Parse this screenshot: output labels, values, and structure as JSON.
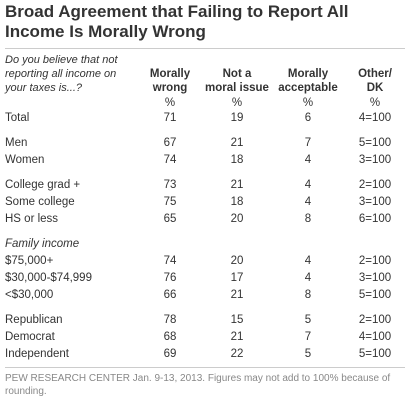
{
  "title": "Broad Agreement that Failing to Report All\nIncome Is Morally Wrong",
  "question": "Do you believe that not\nreporting all income on\nyour taxes is...?",
  "columns": [
    "Morally\nwrong",
    "Not a\nmoral issue",
    "Morally\nacceptable",
    "Other/\nDK"
  ],
  "units": [
    "%",
    "%",
    "%",
    "%"
  ],
  "groups": [
    {
      "rows": [
        {
          "label": "Total",
          "values": [
            71,
            19,
            6,
            "4=100"
          ]
        }
      ]
    },
    {
      "rows": [
        {
          "label": "Men",
          "values": [
            67,
            21,
            7,
            "5=100"
          ]
        },
        {
          "label": "Women",
          "values": [
            74,
            18,
            4,
            "3=100"
          ]
        }
      ]
    },
    {
      "rows": [
        {
          "label": "College grad +",
          "values": [
            73,
            21,
            4,
            "2=100"
          ]
        },
        {
          "label": "Some college",
          "values": [
            75,
            18,
            4,
            "3=100"
          ]
        },
        {
          "label": "HS or less",
          "values": [
            65,
            20,
            8,
            "6=100"
          ]
        }
      ]
    },
    {
      "heading": "Family income",
      "rows": [
        {
          "label": "$75,000+",
          "values": [
            74,
            20,
            4,
            "2=100"
          ]
        },
        {
          "label": "$30,000-$74,999",
          "values": [
            76,
            17,
            4,
            "3=100"
          ]
        },
        {
          "label": "<$30,000",
          "values": [
            66,
            21,
            8,
            "5=100"
          ]
        }
      ]
    },
    {
      "rows": [
        {
          "label": "Republican",
          "values": [
            78,
            15,
            5,
            "2=100"
          ]
        },
        {
          "label": "Democrat",
          "values": [
            68,
            21,
            7,
            "4=100"
          ]
        },
        {
          "label": "Independent",
          "values": [
            69,
            22,
            5,
            "5=100"
          ]
        }
      ]
    }
  ],
  "footnote": "PEW RESEARCH CENTER Jan. 9-13, 2013. Figures may not add to 100% because of rounding."
}
